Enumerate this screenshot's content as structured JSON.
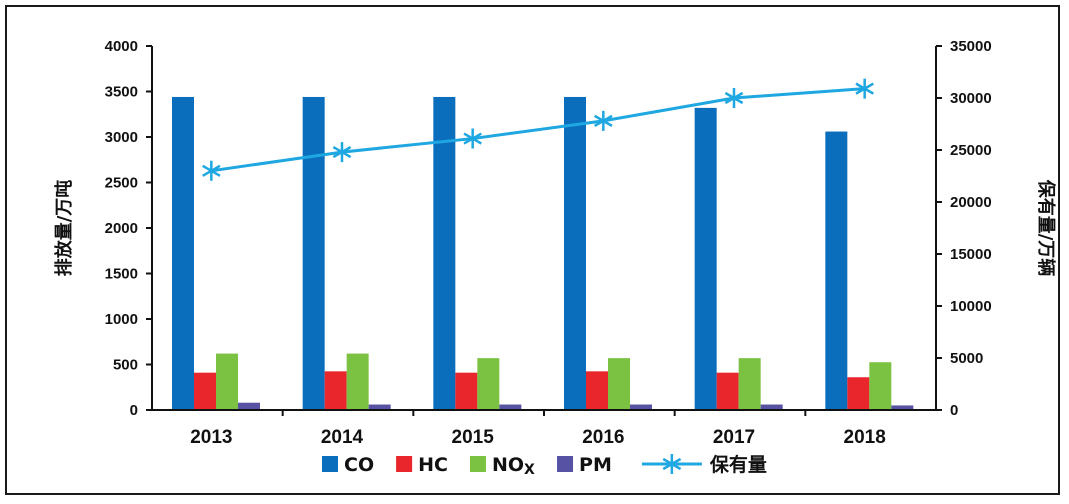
{
  "chart_data": {
    "type": "bar",
    "categories": [
      "2013",
      "2014",
      "2015",
      "2016",
      "2017",
      "2018"
    ],
    "ylabel": "排放量/万吨",
    "y2label": "保有量/万辆",
    "ylim": [
      0,
      4000
    ],
    "y2lim": [
      0,
      35000
    ],
    "yticks": [
      0,
      500,
      1000,
      1500,
      2000,
      2500,
      3000,
      3500,
      4000
    ],
    "y2ticks": [
      0,
      5000,
      10000,
      15000,
      20000,
      25000,
      30000,
      35000
    ],
    "series": [
      {
        "name": "CO",
        "color": "#0a6ebd",
        "values": [
          3440,
          3440,
          3440,
          3440,
          3320,
          3060
        ]
      },
      {
        "name": "HC",
        "color": "#e8262c",
        "values": [
          410,
          425,
          410,
          425,
          410,
          360
        ]
      },
      {
        "name": "NOx",
        "name_main": "NO",
        "name_sub": "X",
        "color": "#7cc242",
        "values": [
          620,
          620,
          570,
          570,
          570,
          525
        ]
      },
      {
        "name": "PM",
        "color": "#5752a3",
        "values": [
          80,
          60,
          60,
          60,
          60,
          50
        ]
      }
    ],
    "line_series": {
      "name": "保有量",
      "color": "#1ea7e1",
      "axis": "right",
      "values": [
        23000,
        24800,
        26100,
        27800,
        30000,
        30900
      ]
    },
    "legend": "bottom",
    "grid": false
  }
}
